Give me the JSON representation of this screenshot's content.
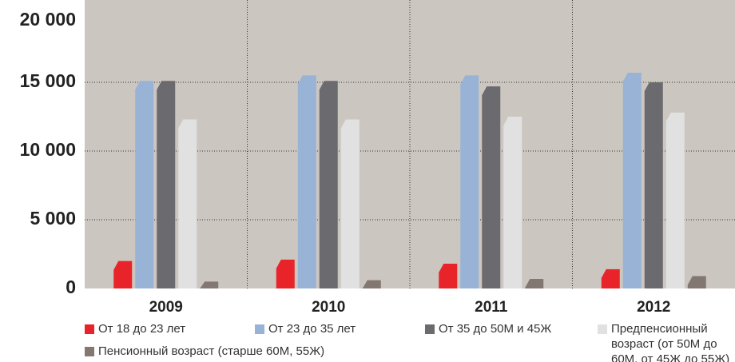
{
  "chart_data": {
    "type": "bar",
    "categories": [
      "2009",
      "2010",
      "2011",
      "2012"
    ],
    "series": [
      {
        "name": "От 18 до 23 лет",
        "color": "#e8242a",
        "values": [
          2000,
          2100,
          1800,
          1400
        ]
      },
      {
        "name": "От 23 до 35 лет",
        "color": "#98b3d6",
        "values": [
          15100,
          15500,
          15500,
          15700
        ]
      },
      {
        "name": "От 35 до 50М и 45Ж",
        "color": "#6b6b6f",
        "values": [
          15100,
          15100,
          14700,
          15000
        ]
      },
      {
        "name": "Предпенсионный возраст (от 50М до 60М, от 45Ж до 55Ж)",
        "color": "#e1e1e1",
        "values": [
          12300,
          12300,
          12500,
          12800
        ]
      },
      {
        "name": "Пенсионный возраст (старше 60М, 55Ж)",
        "color": "#827771",
        "values": [
          500,
          600,
          700,
          900
        ]
      }
    ],
    "ylim": [
      0,
      20000
    ],
    "yticks": [
      0,
      {
        "value": 5000,
        "label": "5 000"
      },
      {
        "value": 10000,
        "label": "10 000"
      },
      {
        "value": 15000,
        "label": "15 000"
      },
      {
        "value": 20000,
        "label": "20 000"
      }
    ],
    "grid": true
  }
}
